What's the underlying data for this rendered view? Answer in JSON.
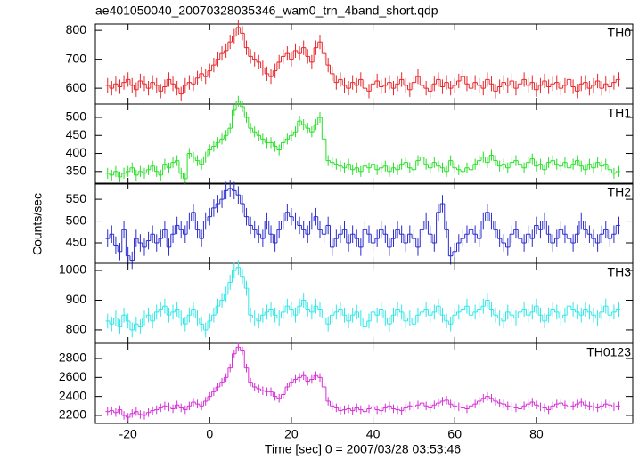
{
  "figure": {
    "title": "ae401050040_20070328035346_wam0_trn_4band_short.qdp",
    "xlabel": "Time [sec] 0 = 2007/03/28 03:53:46",
    "ylabel": "Counts/sec"
  },
  "time_axis": {
    "bin_width": 1,
    "xlim": [
      -28,
      103.6
    ],
    "xticks": [
      -20,
      0,
      20,
      40,
      60,
      80
    ],
    "x": [
      -25,
      -24,
      -23,
      -22,
      -21,
      -20,
      -19,
      -18,
      -17,
      -16,
      -15,
      -14,
      -13,
      -12,
      -11,
      -10,
      -9,
      -8,
      -7,
      -6,
      -5,
      -4,
      -3,
      -2,
      -1,
      0,
      1,
      2,
      3,
      4,
      5,
      6,
      7,
      8,
      9,
      10,
      11,
      12,
      13,
      14,
      15,
      16,
      17,
      18,
      19,
      20,
      21,
      22,
      23,
      24,
      25,
      26,
      27,
      28,
      29,
      30,
      31,
      32,
      33,
      34,
      35,
      36,
      37,
      38,
      39,
      40,
      41,
      42,
      43,
      44,
      45,
      46,
      47,
      48,
      49,
      50,
      51,
      52,
      53,
      54,
      55,
      56,
      57,
      58,
      59,
      60,
      61,
      62,
      63,
      64,
      65,
      66,
      67,
      68,
      69,
      70,
      71,
      72,
      73,
      74,
      75,
      76,
      77,
      78,
      79,
      80,
      81,
      82,
      83,
      84,
      85,
      86,
      87,
      88,
      89,
      90,
      91,
      92,
      93,
      94,
      95,
      96,
      97,
      98,
      99,
      100
    ]
  },
  "chart_data": [
    {
      "type": "step",
      "title": "TH0",
      "color": "#e8262a",
      "error": 25,
      "ylim": [
        545,
        822
      ],
      "yticks": [
        600,
        700,
        800
      ],
      "values": [
        610,
        600,
        615,
        605,
        620,
        630,
        610,
        595,
        625,
        615,
        600,
        620,
        610,
        590,
        605,
        630,
        615,
        600,
        580,
        610,
        620,
        615,
        635,
        650,
        640,
        660,
        680,
        700,
        720,
        730,
        760,
        780,
        810,
        790,
        740,
        710,
        700,
        690,
        670,
        650,
        640,
        660,
        690,
        710,
        720,
        700,
        730,
        720,
        740,
        710,
        690,
        740,
        760,
        720,
        680,
        650,
        620,
        630,
        610,
        600,
        620,
        610,
        630,
        600,
        590,
        615,
        625,
        605,
        610,
        620,
        600,
        615,
        630,
        610,
        595,
        620,
        640,
        610,
        600,
        590,
        615,
        630,
        605,
        620,
        600,
        610,
        625,
        640,
        615,
        600,
        620,
        610,
        600,
        630,
        615,
        590,
        605,
        620,
        610,
        625,
        600,
        615,
        630,
        610,
        620,
        595,
        610,
        625,
        605,
        615,
        620,
        600,
        610,
        630,
        605,
        590,
        615,
        620,
        600,
        610,
        625,
        600,
        615,
        605,
        620,
        630
      ]
    },
    {
      "type": "step",
      "title": "TH1",
      "color": "#27e027",
      "error": 15,
      "ylim": [
        315,
        537
      ],
      "yticks": [
        350,
        400,
        450,
        500
      ],
      "values": [
        345,
        340,
        350,
        335,
        345,
        350,
        360,
        340,
        350,
        345,
        355,
        365,
        350,
        340,
        370,
        360,
        375,
        380,
        345,
        330,
        400,
        390,
        380,
        370,
        390,
        410,
        420,
        430,
        440,
        450,
        470,
        520,
        545,
        530,
        500,
        470,
        460,
        450,
        440,
        430,
        430,
        420,
        410,
        430,
        440,
        450,
        460,
        490,
        480,
        470,
        460,
        480,
        500,
        440,
        380,
        375,
        370,
        365,
        360,
        370,
        355,
        360,
        350,
        365,
        360,
        370,
        355,
        360,
        365,
        350,
        360,
        355,
        370,
        375,
        360,
        355,
        380,
        390,
        370,
        360,
        375,
        365,
        360,
        350,
        380,
        360,
        355,
        350,
        360,
        355,
        370,
        380,
        390,
        375,
        395,
        380,
        365,
        370,
        360,
        375,
        380,
        370,
        360,
        375,
        385,
        365,
        370,
        355,
        375,
        380,
        370,
        365,
        375,
        360,
        370,
        380,
        365,
        355,
        370,
        360,
        375,
        365,
        370,
        355,
        345,
        350
      ]
    },
    {
      "type": "step",
      "title": "TH2",
      "color": "#2b2bd0",
      "error": 20,
      "ylim": [
        403,
        587
      ],
      "yticks": [
        450,
        500,
        550
      ],
      "values": [
        460,
        470,
        445,
        430,
        480,
        420,
        410,
        460,
        450,
        440,
        455,
        470,
        450,
        460,
        480,
        440,
        470,
        490,
        480,
        470,
        500,
        520,
        480,
        460,
        500,
        510,
        530,
        540,
        550,
        570,
        575,
        570,
        560,
        540,
        510,
        490,
        480,
        470,
        460,
        500,
        470,
        450,
        480,
        500,
        520,
        510,
        500,
        490,
        480,
        470,
        500,
        510,
        480,
        470,
        490,
        440,
        460,
        470,
        480,
        450,
        470,
        460,
        440,
        480,
        470,
        450,
        460,
        480,
        470,
        440,
        460,
        480,
        470,
        450,
        470,
        460,
        440,
        480,
        500,
        470,
        450,
        520,
        540,
        480,
        420,
        430,
        450,
        460,
        470,
        480,
        470,
        460,
        500,
        520,
        500,
        480,
        460,
        450,
        440,
        470,
        480,
        460,
        450,
        470,
        460,
        490,
        480,
        500,
        470,
        450,
        460,
        480,
        470,
        460,
        450,
        470,
        500,
        480,
        470,
        460,
        450,
        470,
        480,
        460,
        470,
        490
      ]
    },
    {
      "type": "step",
      "title": "TH3",
      "color": "#2ee8e8",
      "error": 25,
      "ylim": [
        755,
        1024
      ],
      "yticks": [
        800,
        900,
        1000
      ],
      "values": [
        830,
        820,
        840,
        810,
        850,
        830,
        800,
        820,
        810,
        840,
        850,
        830,
        860,
        870,
        880,
        850,
        860,
        870,
        840,
        820,
        850,
        870,
        840,
        820,
        800,
        830,
        850,
        880,
        900,
        920,
        960,
        1000,
        1010,
        980,
        940,
        850,
        840,
        830,
        850,
        860,
        870,
        850,
        840,
        860,
        880,
        870,
        850,
        880,
        900,
        870,
        860,
        880,
        870,
        840,
        820,
        850,
        860,
        870,
        850,
        830,
        850,
        860,
        840,
        810,
        830,
        860,
        850,
        870,
        840,
        820,
        850,
        870,
        860,
        830,
        840,
        820,
        850,
        860,
        870,
        850,
        860,
        880,
        850,
        830,
        820,
        850,
        860,
        870,
        880,
        850,
        860,
        870,
        880,
        900,
        870,
        850,
        840,
        830,
        860,
        850,
        840,
        860,
        870,
        850,
        860,
        880,
        850,
        830,
        850,
        870,
        860,
        840,
        850,
        880,
        870,
        860,
        850,
        870,
        860,
        850,
        840,
        860,
        880,
        850,
        860,
        870
      ]
    },
    {
      "type": "step",
      "title": "TH0123",
      "color": "#d62fd6",
      "error": 45,
      "ylim": [
        2115,
        2960
      ],
      "yticks": [
        2200,
        2400,
        2600,
        2800
      ],
      "values": [
        2240,
        2250,
        2230,
        2260,
        2200,
        2180,
        2220,
        2240,
        2210,
        2200,
        2230,
        2250,
        2260,
        2280,
        2300,
        2290,
        2270,
        2310,
        2280,
        2260,
        2300,
        2340,
        2320,
        2300,
        2350,
        2400,
        2450,
        2500,
        2550,
        2600,
        2700,
        2850,
        2920,
        2880,
        2700,
        2550,
        2500,
        2480,
        2460,
        2450,
        2450,
        2400,
        2380,
        2420,
        2500,
        2550,
        2580,
        2600,
        2620,
        2560,
        2580,
        2620,
        2600,
        2500,
        2350,
        2300,
        2280,
        2250,
        2260,
        2270,
        2250,
        2280,
        2260,
        2240,
        2270,
        2290,
        2260,
        2250,
        2280,
        2300,
        2270,
        2260,
        2250,
        2280,
        2300,
        2290,
        2310,
        2330,
        2300,
        2280,
        2310,
        2330,
        2350,
        2360,
        2320,
        2300,
        2290,
        2280,
        2270,
        2300,
        2320,
        2350,
        2380,
        2400,
        2380,
        2350,
        2330,
        2320,
        2300,
        2290,
        2280,
        2270,
        2300,
        2320,
        2340,
        2310,
        2290,
        2280,
        2260,
        2300,
        2320,
        2330,
        2310,
        2290,
        2300,
        2320,
        2340,
        2310,
        2300,
        2290,
        2280,
        2300,
        2320,
        2310,
        2290,
        2300
      ]
    }
  ]
}
